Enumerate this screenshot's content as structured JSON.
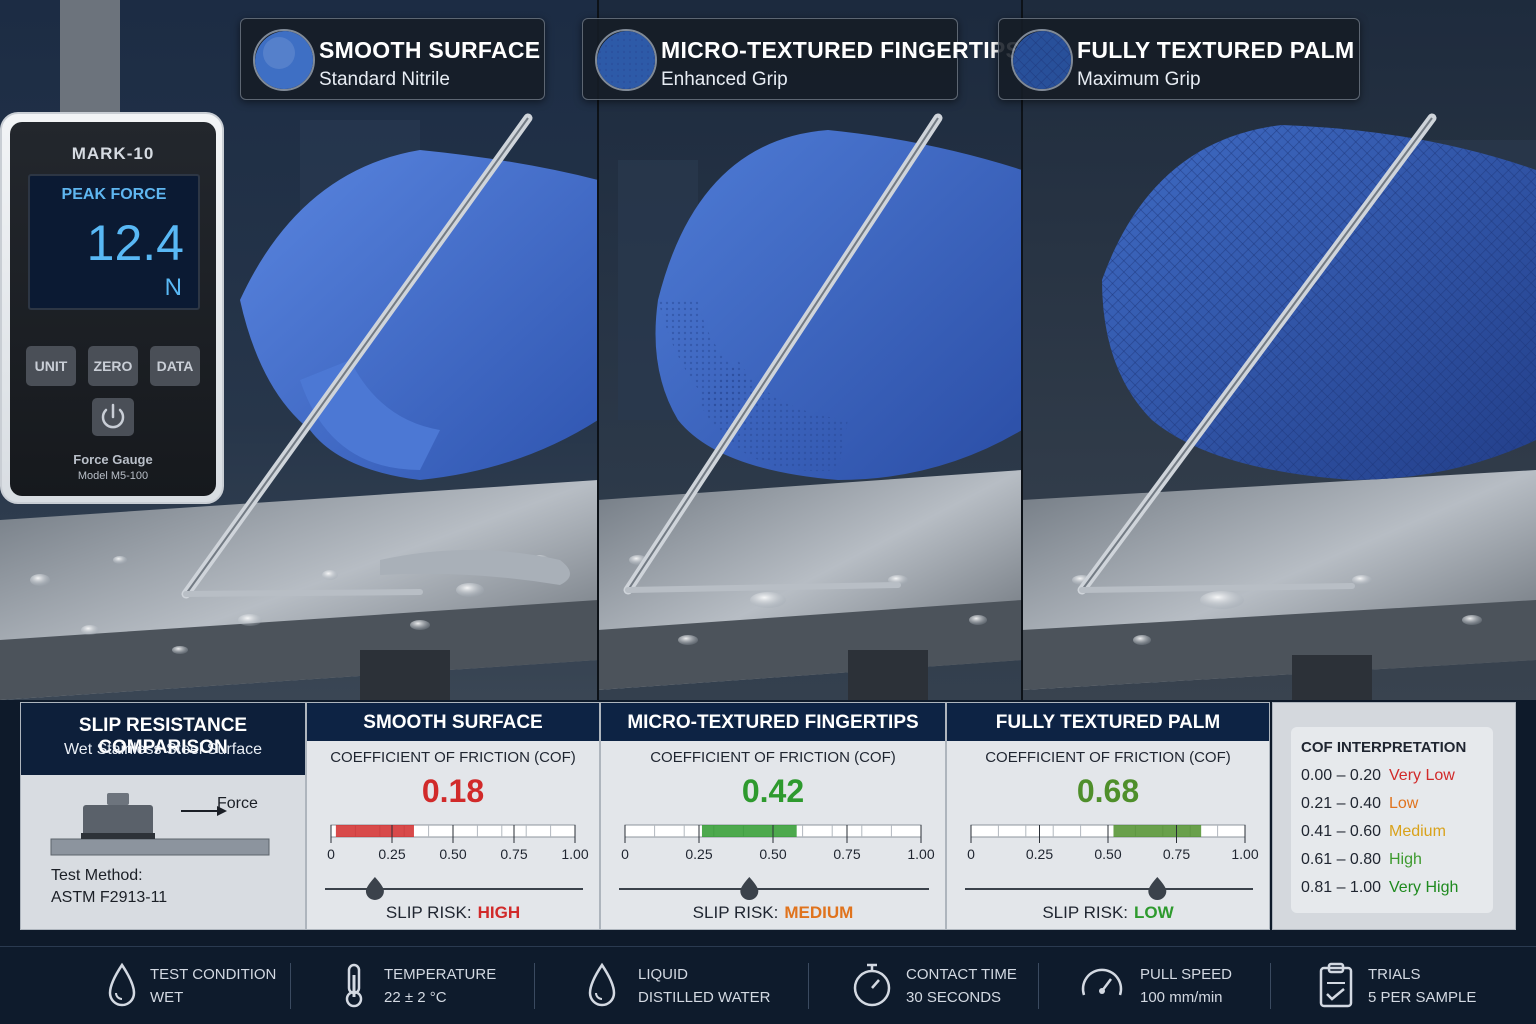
{
  "panels": [
    {
      "title": "SMOOTH SURFACE",
      "subtitle": "Standard Nitrile",
      "swatch_color": "#3e6fc4"
    },
    {
      "title": "MICRO-TEXTURED FINGERTIPS",
      "subtitle": "Enhanced Grip",
      "swatch_color": "#2d5aa8"
    },
    {
      "title": "FULLY TEXTURED PALM",
      "subtitle": "Maximum Grip",
      "swatch_color": "#28509a"
    }
  ],
  "gauge": {
    "brand": "MARK-10",
    "screen_label": "PEAK FORCE",
    "reading": "12.4",
    "unit": "N",
    "buttons": [
      "UNIT",
      "ZERO",
      "DATA"
    ],
    "caption": "Force Gauge",
    "model": "Model M5-100"
  },
  "summary": {
    "title": "SLIP RESISTANCE COMPARISON",
    "subtitle": "Wet Stainless Steel Surface",
    "force_label": "Force",
    "method_label": "Test Method:",
    "method_value": "ASTM F2913-11"
  },
  "results": [
    {
      "header": "SMOOTH SURFACE",
      "cof_label": "COEFFICIENT OF FRICTION (COF)",
      "cof": "0.18",
      "cof_value": 0.18,
      "risk_label": "SLIP RISK:",
      "risk": "HIGH",
      "color": "#d12a2a"
    },
    {
      "header": "MICRO-TEXTURED FINGERTIPS",
      "cof_label": "COEFFICIENT OF FRICTION (COF)",
      "cof": "0.42",
      "cof_value": 0.42,
      "risk_label": "SLIP RISK:",
      "risk": "MEDIUM",
      "color": "#2e9a2e"
    },
    {
      "header": "FULLY TEXTURED PALM",
      "cof_label": "COEFFICIENT OF FRICTION (COF)",
      "cof": "0.68",
      "cof_value": 0.68,
      "risk_label": "SLIP RISK:",
      "risk": "LOW",
      "color": "#4f8f2b"
    }
  ],
  "risk_colors": {
    "HIGH": "#d12a2a",
    "MEDIUM": "#e0731d",
    "LOW": "#2e9a2e"
  },
  "scale_ticks": [
    "0",
    "0.25",
    "0.50",
    "0.75",
    "1.00"
  ],
  "interpretation": {
    "title": "COF INTERPRETATION",
    "rows": [
      {
        "range": "0.00 – 0.20",
        "label": "Very Low",
        "color": "#d12a2a"
      },
      {
        "range": "0.21 – 0.40",
        "label": "Low",
        "color": "#e0731d"
      },
      {
        "range": "0.41 – 0.60",
        "label": "Medium",
        "color": "#d9a21a"
      },
      {
        "range": "0.61 – 0.80",
        "label": "High",
        "color": "#3d9a2e"
      },
      {
        "range": "0.81 – 1.00",
        "label": "Very High",
        "color": "#1f8a1f"
      }
    ]
  },
  "footer": [
    {
      "icon": "drop-icon",
      "label": "TEST CONDITION",
      "value": "WET"
    },
    {
      "icon": "thermometer-icon",
      "label": "TEMPERATURE",
      "value": "22 ± 2 °C"
    },
    {
      "icon": "drop-icon",
      "label": "LIQUID",
      "value": "DISTILLED WATER"
    },
    {
      "icon": "stopwatch-icon",
      "label": "CONTACT TIME",
      "value": "30 SECONDS"
    },
    {
      "icon": "speedometer-icon",
      "label": "PULL SPEED",
      "value": "100 mm/min"
    },
    {
      "icon": "clipboard-icon",
      "label": "TRIALS",
      "value": "5 PER SAMPLE"
    }
  ]
}
